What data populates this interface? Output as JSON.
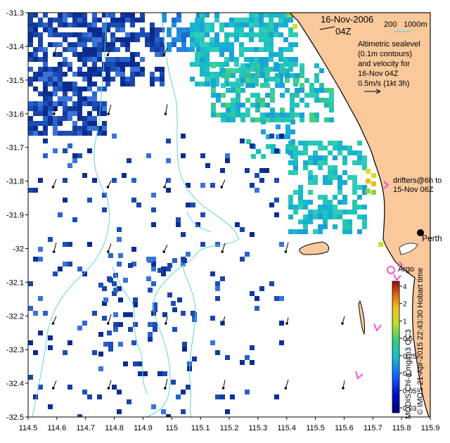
{
  "header": {
    "date": "16-Nov-2006",
    "time": "04Z"
  },
  "scale_bar": {
    "label_200": "200",
    "label_1000": "1000m"
  },
  "legend_text": {
    "line1": "Altimetric sealevel",
    "line2": "(0.1m contours)",
    "line3": "and velocity for",
    "line4": "16-Nov 04Z",
    "line5": "0.5m/s (1kt 3h)"
  },
  "drifters_note": {
    "line1": "drifters@6h to",
    "line2": "15-Nov 06Z"
  },
  "places": {
    "perth": "Perth",
    "argo": "Argo"
  },
  "colorbar": {
    "label": "MODIS Chl-a mg/m3 OC3",
    "ticks": [
      "4",
      "2",
      "1",
      "0.5",
      "0.25",
      "0.1",
      "0.05",
      "0.03"
    ]
  },
  "credit": "© IMOS 21-Apr-2015 22:43:30 Hobart time",
  "axes": {
    "x_ticks": [
      "114.5",
      "114.6",
      "114.7",
      "114.8",
      "114.9",
      "115",
      "115.1",
      "115.2",
      "115.3",
      "115.4",
      "115.5",
      "115.6",
      "115.7",
      "115.8",
      "115.9"
    ],
    "y_ticks": [
      "-31.3",
      "-31.4",
      "-31.5",
      "-31.6",
      "-31.7",
      "-31.8",
      "-31.9",
      "-32",
      "-32.1",
      "-32.2",
      "-32.3",
      "-32.4",
      "-32.5"
    ]
  },
  "colors": {
    "land": "#f9c89b",
    "contour": "#5fd3de",
    "drifter": "#ff33cc",
    "chl_low": "#0a2a8c",
    "chl_mid": "#18c0c8",
    "chl_high": "#e0e020"
  }
}
